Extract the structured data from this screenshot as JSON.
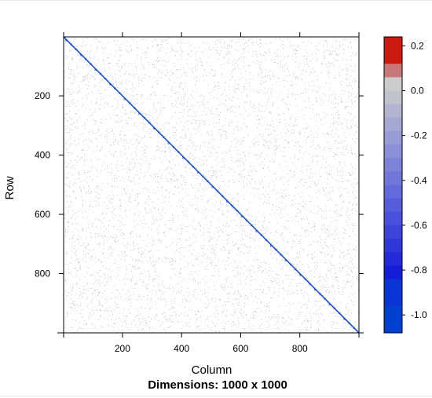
{
  "chart_data": {
    "type": "heatmap",
    "title": "",
    "subtitle": "Dimensions: 1000 x 1000",
    "xlabel": "Column",
    "ylabel": "Row",
    "xlim": [
      1,
      1000
    ],
    "ylim": [
      1000,
      1
    ],
    "x_ticks": [
      200,
      400,
      600,
      800
    ],
    "y_ticks": [
      200,
      400,
      600,
      800
    ],
    "diagonal_value": -1.0,
    "off_diagonal": "sparse small values (approximately -0.1 to 0.1)",
    "colorbar": {
      "min": -1.08,
      "max": 0.24,
      "ticks": [
        0.2,
        0.0,
        -0.2,
        -0.4,
        -0.6,
        -0.8,
        -1.0
      ],
      "tick_labels": [
        "0.2",
        "0.0",
        "-0.2",
        "-0.4",
        "-0.6",
        "-0.8",
        "-1.0"
      ],
      "blocks": [
        {
          "from": 0.12,
          "to": 0.24,
          "color": "#cc1a10"
        },
        {
          "from": 0.06,
          "to": 0.12,
          "color": "#c87878"
        },
        {
          "from": 0.0,
          "to": 0.06,
          "color": "#cccccc"
        },
        {
          "from": -0.06,
          "to": 0.0,
          "color": "#c0c2cc"
        },
        {
          "from": -0.12,
          "to": -0.06,
          "color": "#b2b5d0"
        },
        {
          "from": -0.18,
          "to": -0.12,
          "color": "#a4a9d4"
        },
        {
          "from": -0.24,
          "to": -0.18,
          "color": "#979cd6"
        },
        {
          "from": -0.3,
          "to": -0.24,
          "color": "#8a8fd8"
        },
        {
          "from": -0.36,
          "to": -0.3,
          "color": "#7d83d9"
        },
        {
          "from": -0.42,
          "to": -0.36,
          "color": "#7076da"
        },
        {
          "from": -0.48,
          "to": -0.42,
          "color": "#636adb"
        },
        {
          "from": -0.54,
          "to": -0.48,
          "color": "#565ddb"
        },
        {
          "from": -0.6,
          "to": -0.54,
          "color": "#4950db"
        },
        {
          "from": -0.66,
          "to": -0.6,
          "color": "#3c44da"
        },
        {
          "from": -0.72,
          "to": -0.66,
          "color": "#3037d9"
        },
        {
          "from": -0.78,
          "to": -0.72,
          "color": "#232ad8"
        },
        {
          "from": -0.84,
          "to": -0.78,
          "color": "#161dd6"
        },
        {
          "from": -0.96,
          "to": -0.84,
          "color": "#0a35d4"
        },
        {
          "from": -1.08,
          "to": -0.96,
          "color": "#0040d0"
        }
      ]
    },
    "colors": {
      "diagonal": "#1a4fd8",
      "noise": "#555555",
      "frame": "#000000"
    }
  }
}
